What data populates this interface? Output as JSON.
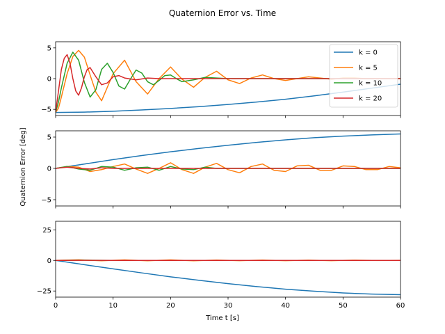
{
  "chart_data": {
    "type": "line",
    "title": "Quaternion Error vs. Time",
    "xlabel": "Time t [s]",
    "ylabel": "Quaternion Error [deg]",
    "xlim": [
      0,
      60
    ],
    "x_ticks": [
      0,
      10,
      20,
      30,
      40,
      50,
      60
    ],
    "legend": {
      "placement": "upper right",
      "entries": [
        "k = 0",
        "k = 5",
        "k = 10",
        "k = 20"
      ]
    },
    "colors": {
      "k = 0": "#1f77b4",
      "k = 5": "#ff7f0e",
      "k = 10": "#2ca02c",
      "k = 20": "#d62728"
    },
    "subplots": [
      {
        "ylim": [
          -6,
          6
        ],
        "y_ticks": [
          -5,
          0,
          5
        ],
        "series": [
          {
            "name": "k = 0",
            "x": [
              0,
              5,
              10,
              15,
              20,
              25,
              30,
              35,
              40,
              45,
              50,
              55,
              60
            ],
            "y": [
              -5.5,
              -5.45,
              -5.3,
              -5.1,
              -4.85,
              -4.55,
              -4.2,
              -3.8,
              -3.35,
              -2.8,
              -2.2,
              -1.55,
              -0.9
            ]
          },
          {
            "name": "k = 5",
            "x": [
              0,
              0.5,
              1,
              2,
              3,
              4,
              5,
              6,
              7,
              8,
              10,
              12,
              14,
              16,
              18,
              20,
              22,
              24,
              26,
              28,
              30,
              32,
              34,
              36,
              38,
              40,
              42,
              44,
              46,
              48,
              50,
              52,
              54,
              56,
              58,
              60
            ],
            "y": [
              -5.5,
              -4.8,
              -3.0,
              0.8,
              3.6,
              4.6,
              3.5,
              0.6,
              -2.2,
              -3.6,
              0.8,
              3.0,
              -0.5,
              -2.5,
              0.0,
              1.9,
              -0.1,
              -1.4,
              0.2,
              1.2,
              -0.2,
              -0.8,
              0.1,
              0.6,
              0.0,
              -0.3,
              0.0,
              0.3,
              0.1,
              -0.1,
              0.1,
              0.1,
              0.0,
              0.0,
              0.0,
              0.0
            ]
          },
          {
            "name": "k = 10",
            "x": [
              0,
              0.5,
              1,
              2,
              3,
              4,
              5,
              6,
              7,
              8,
              9,
              10,
              11,
              12,
              13,
              14,
              15,
              16,
              17,
              18,
              19,
              20,
              21,
              22,
              24,
              26,
              28,
              30,
              35,
              40,
              45,
              50,
              55,
              60
            ],
            "y": [
              -5.5,
              -3.8,
              -1.5,
              2.5,
              4.3,
              3.0,
              -0.6,
              -3.0,
              -1.8,
              1.5,
              2.5,
              1.0,
              -1.2,
              -1.7,
              -0.1,
              1.4,
              0.9,
              -0.5,
              -1.0,
              -0.3,
              0.5,
              0.6,
              0.0,
              -0.5,
              -0.2,
              0.2,
              0.1,
              0.0,
              0.0,
              0.0,
              0.0,
              0.0,
              0.0,
              0.0
            ]
          },
          {
            "name": "k = 20",
            "x": [
              0,
              0.5,
              1,
              1.5,
              2,
              2.5,
              3,
              3.5,
              4,
              4.5,
              5,
              5.5,
              6,
              7,
              8,
              9,
              10,
              11,
              12,
              14,
              16,
              18,
              20,
              25,
              30,
              40,
              50,
              60
            ],
            "y": [
              -5.5,
              -2.0,
              1.5,
              3.3,
              3.9,
              2.5,
              0.0,
              -2.0,
              -2.7,
              -1.5,
              0.3,
              1.5,
              1.8,
              0.3,
              -1.0,
              -0.7,
              0.3,
              0.5,
              0.1,
              -0.2,
              0.1,
              0.0,
              0.0,
              0.0,
              0.0,
              0.0,
              0.0,
              0.0
            ]
          }
        ]
      },
      {
        "ylim": [
          -6,
          6
        ],
        "y_ticks": [
          -5,
          0,
          5
        ],
        "series": [
          {
            "name": "k = 0",
            "x": [
              0,
              5,
              10,
              15,
              20,
              25,
              30,
              35,
              40,
              45,
              50,
              55,
              60
            ],
            "y": [
              0.0,
              0.7,
              1.4,
              2.05,
              2.65,
              3.2,
              3.7,
              4.15,
              4.55,
              4.9,
              5.15,
              5.35,
              5.5
            ]
          },
          {
            "name": "k = 5",
            "x": [
              0,
              2,
              4,
              6,
              8,
              10,
              12,
              14,
              16,
              18,
              20,
              22,
              24,
              26,
              28,
              30,
              32,
              34,
              36,
              38,
              40,
              42,
              44,
              46,
              48,
              50,
              52,
              54,
              56,
              58,
              60
            ],
            "y": [
              0.0,
              0.3,
              0.2,
              -0.5,
              -0.2,
              0.3,
              0.7,
              -0.1,
              -0.8,
              0.0,
              0.9,
              -0.2,
              -0.8,
              0.2,
              0.8,
              -0.2,
              -0.7,
              0.3,
              0.7,
              -0.3,
              -0.5,
              0.4,
              0.5,
              -0.3,
              -0.3,
              0.4,
              0.3,
              -0.2,
              -0.2,
              0.3,
              0.1
            ]
          },
          {
            "name": "k = 10",
            "x": [
              0,
              2,
              4,
              6,
              8,
              10,
              12,
              14,
              16,
              18,
              20,
              22,
              24,
              26,
              28,
              30,
              35,
              40,
              45,
              50,
              55,
              60
            ],
            "y": [
              0.0,
              0.3,
              -0.1,
              -0.3,
              0.3,
              0.2,
              -0.3,
              0.1,
              0.2,
              -0.3,
              0.3,
              -0.1,
              -0.2,
              0.2,
              0.0,
              0.0,
              0.0,
              0.0,
              0.0,
              0.0,
              0.0,
              0.0
            ]
          },
          {
            "name": "k = 20",
            "x": [
              0,
              2,
              4,
              6,
              8,
              10,
              12,
              15,
              20,
              30,
              40,
              50,
              60
            ],
            "y": [
              0.0,
              0.2,
              0.0,
              -0.1,
              0.1,
              0.0,
              0.0,
              0.0,
              0.0,
              0.0,
              0.0,
              0.0,
              0.0
            ]
          }
        ]
      },
      {
        "ylim": [
          -30,
          32
        ],
        "y_ticks": [
          -25,
          0,
          25
        ],
        "series": [
          {
            "name": "k = 0",
            "x": [
              0,
              5,
              10,
              15,
              20,
              25,
              30,
              35,
              40,
              45,
              50,
              55,
              60
            ],
            "y": [
              0.0,
              -3.5,
              -6.9,
              -10.2,
              -13.4,
              -16.3,
              -19.0,
              -21.4,
              -23.5,
              -25.2,
              -26.6,
              -27.5,
              -28.0
            ]
          },
          {
            "name": "k = 5",
            "x": [
              0,
              4,
              8,
              12,
              16,
              20,
              24,
              28,
              32,
              36,
              40,
              44,
              48,
              52,
              56,
              60
            ],
            "y": [
              0.0,
              0.5,
              -0.3,
              0.4,
              -0.3,
              0.4,
              -0.3,
              0.3,
              -0.2,
              0.3,
              -0.2,
              0.2,
              -0.2,
              0.2,
              -0.1,
              0.1
            ]
          },
          {
            "name": "k = 10",
            "x": [
              0,
              5,
              10,
              20,
              30,
              40,
              50,
              60
            ],
            "y": [
              0.0,
              0.2,
              0.0,
              0.0,
              0.0,
              0.0,
              0.0,
              0.0
            ]
          },
          {
            "name": "k = 20",
            "x": [
              0,
              5,
              10,
              20,
              30,
              40,
              50,
              60
            ],
            "y": [
              0.0,
              0.1,
              0.0,
              0.0,
              0.0,
              0.0,
              0.0,
              0.0
            ]
          }
        ]
      }
    ]
  }
}
